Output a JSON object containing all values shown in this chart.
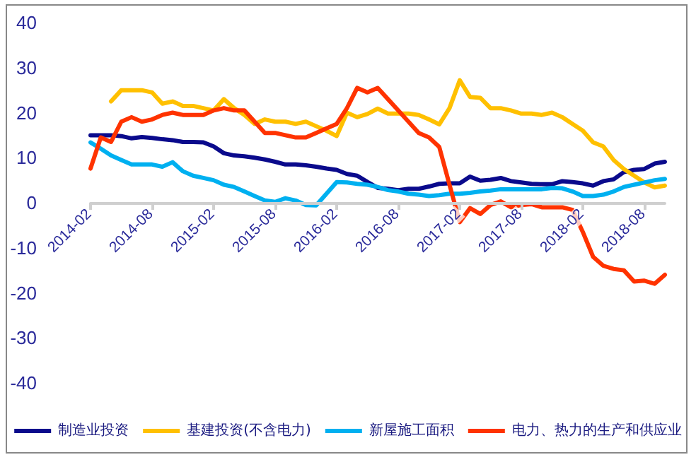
{
  "chart_data": {
    "type": "line",
    "categories": [
      "2014-02",
      null,
      null,
      null,
      null,
      null,
      "2014-08",
      null,
      null,
      null,
      null,
      null,
      "2015-02",
      null,
      null,
      null,
      null,
      null,
      "2015-08",
      null,
      null,
      null,
      null,
      null,
      "2016-02",
      null,
      null,
      null,
      null,
      null,
      "2016-08",
      null,
      null,
      null,
      null,
      null,
      "2017-02",
      null,
      null,
      null,
      null,
      null,
      "2017-08",
      null,
      null,
      null,
      null,
      null,
      "2018-02",
      null,
      null,
      null,
      null,
      null,
      "2018-08",
      null,
      null
    ],
    "series": [
      {
        "name": "制造业投资",
        "color": "#0a0a8c",
        "values": [
          15,
          15,
          15,
          14.8,
          14.3,
          14.6,
          14.4,
          14.1,
          13.9,
          13.5,
          13.5,
          13.4,
          12.5,
          11,
          10.5,
          10.3,
          10,
          9.6,
          9.1,
          8.5,
          8.5,
          8.3,
          8,
          7.6,
          7.3,
          6.4,
          6,
          4.6,
          3.3,
          3.1,
          2.8,
          3.1,
          3.1,
          3.6,
          4.2,
          4.3,
          4.3,
          5.8,
          4.9,
          5.1,
          5.5,
          4.8,
          4.5,
          4.2,
          4.1,
          4.1,
          4.8,
          4.6,
          4.3,
          3.8,
          4.8,
          5.2,
          6.8,
          7.3,
          7.5,
          8.7,
          9.1
        ]
      },
      {
        "name": "基建投资(不含电力)",
        "color": "#ffc000",
        "values": [
          null,
          null,
          22.5,
          25,
          25,
          25,
          24.5,
          22,
          22.5,
          21.5,
          21.5,
          21,
          20.5,
          23,
          21,
          19.5,
          17.5,
          18.5,
          18,
          18,
          17.5,
          18,
          17,
          16,
          14.8,
          20,
          19,
          19.7,
          20.9,
          19.8,
          19.8,
          19.8,
          19.5,
          18.5,
          17.4,
          21,
          27.2,
          23.5,
          23.3,
          21,
          21,
          20.5,
          19.8,
          19.8,
          19.5,
          20,
          19,
          17.5,
          16,
          13.4,
          12.5,
          9.5,
          7.5,
          6,
          4.5,
          3.4,
          3.8
        ]
      },
      {
        "name": "新屋施工面积",
        "color": "#00b0f0",
        "values": [
          13.4,
          12,
          10.5,
          9.5,
          8.5,
          8.5,
          8.5,
          8,
          9,
          7,
          6,
          5.5,
          5,
          4,
          3.5,
          2.5,
          1.5,
          0.5,
          0.2,
          1,
          0.5,
          -0.5,
          -0.6,
          2,
          4.6,
          4.5,
          4.2,
          4,
          3.5,
          2.8,
          2.5,
          2,
          1.8,
          1.5,
          1.7,
          2,
          2,
          2.2,
          2.5,
          2.7,
          3,
          3,
          3,
          3,
          3,
          3.3,
          3.2,
          2.5,
          1.5,
          1.5,
          1.8,
          2.5,
          3.5,
          4,
          4.5,
          5,
          5.3
        ]
      },
      {
        "name": "电力、热力的生产和供应业",
        "color": "#ff3300",
        "values": [
          7.6,
          14.5,
          13.5,
          18,
          19,
          18,
          18.5,
          19.5,
          20,
          19.5,
          19.5,
          19.5,
          20.5,
          21,
          20.5,
          20.5,
          18,
          15.5,
          15.5,
          15,
          14.5,
          14.5,
          15.5,
          16.5,
          17.5,
          21,
          25.5,
          24.5,
          25.5,
          23,
          20.5,
          18,
          15.5,
          14.5,
          12.4,
          4,
          -4.3,
          -1.2,
          -2.5,
          -0.5,
          0.3,
          -1,
          -0.5,
          -0.3,
          -1,
          -1,
          -1,
          -1.6,
          -6.5,
          -12,
          -14,
          -14.7,
          -15,
          -17.5,
          -17.3,
          -18,
          -16
        ]
      }
    ],
    "ylim": [
      -40,
      40
    ],
    "yticks": [
      -40,
      -30,
      -20,
      -10,
      0,
      10,
      20,
      30,
      40
    ],
    "grid": false,
    "legend": "bottom",
    "marker": "none",
    "line_style": "solid"
  }
}
